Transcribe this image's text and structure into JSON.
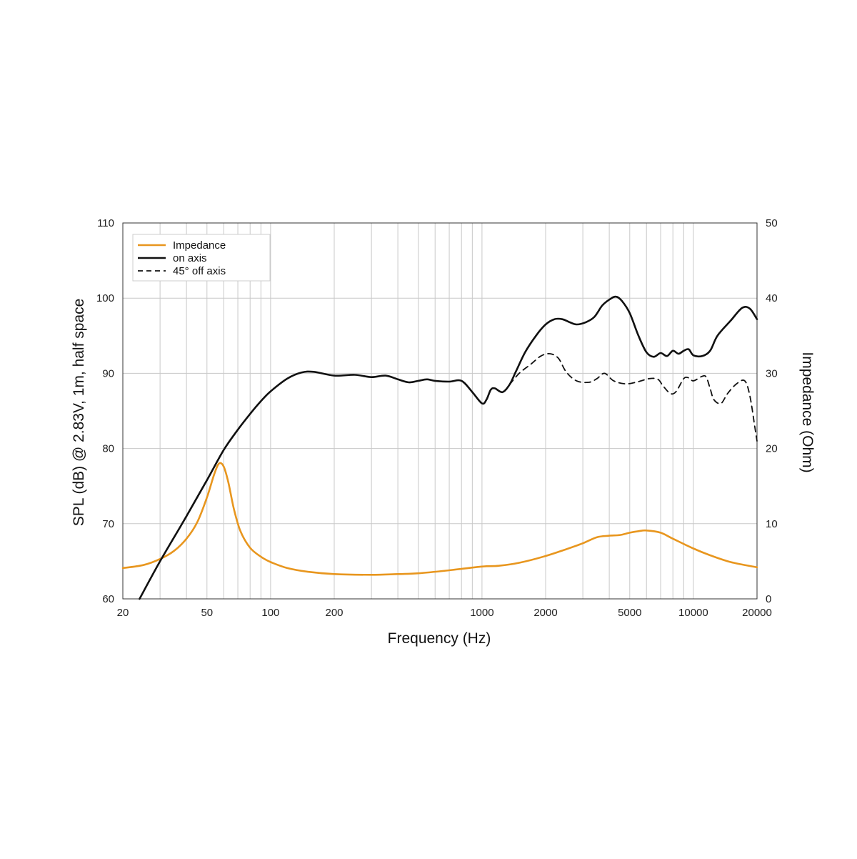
{
  "chart_data": {
    "type": "line",
    "xscale": "log",
    "xlim": [
      20,
      20000
    ],
    "ylim": [
      60,
      110
    ],
    "y2lim": [
      0,
      50
    ],
    "grid": true,
    "legend_position": "top-left",
    "xlabel": "Frequency (Hz)",
    "ylabel": "SPL (dB) @ 2.83V, 1m, half space",
    "y2label": "Impedance (Ohm)",
    "x_ticks": [
      20,
      50,
      100,
      200,
      1000,
      2000,
      5000,
      10000,
      20000
    ],
    "x_tick_labels": [
      "20",
      "50",
      "100",
      "200",
      "1000",
      "2000",
      "5000",
      "10000",
      "20000"
    ],
    "y_ticks": [
      60,
      70,
      80,
      90,
      100,
      110
    ],
    "y_tick_labels": [
      "60",
      "70",
      "80",
      "90",
      "100",
      "110"
    ],
    "y2_ticks": [
      0,
      10,
      20,
      30,
      40,
      50
    ],
    "y2_tick_labels": [
      "0",
      "10",
      "20",
      "30",
      "40",
      "50"
    ],
    "series": [
      {
        "name": "Impedance",
        "axis": "right",
        "color": "#e8961e",
        "style": "solid",
        "points": [
          [
            20,
            4.1
          ],
          [
            25,
            4.5
          ],
          [
            30,
            5.3
          ],
          [
            35,
            6.4
          ],
          [
            40,
            8.0
          ],
          [
            45,
            10.2
          ],
          [
            50,
            13.5
          ],
          [
            54,
            16.5
          ],
          [
            57,
            18.0
          ],
          [
            60,
            17.6
          ],
          [
            63,
            15.6
          ],
          [
            67,
            12.0
          ],
          [
            72,
            9.0
          ],
          [
            80,
            6.8
          ],
          [
            90,
            5.6
          ],
          [
            100,
            4.9
          ],
          [
            120,
            4.1
          ],
          [
            150,
            3.6
          ],
          [
            200,
            3.3
          ],
          [
            300,
            3.2
          ],
          [
            400,
            3.3
          ],
          [
            500,
            3.4
          ],
          [
            700,
            3.8
          ],
          [
            1000,
            4.3
          ],
          [
            1200,
            4.4
          ],
          [
            1500,
            4.8
          ],
          [
            2000,
            5.7
          ],
          [
            2500,
            6.6
          ],
          [
            3000,
            7.4
          ],
          [
            3500,
            8.2
          ],
          [
            4000,
            8.4
          ],
          [
            4500,
            8.5
          ],
          [
            5000,
            8.8
          ],
          [
            5500,
            9.0
          ],
          [
            6000,
            9.1
          ],
          [
            7000,
            8.8
          ],
          [
            8000,
            8.0
          ],
          [
            10000,
            6.7
          ],
          [
            12000,
            5.8
          ],
          [
            15000,
            4.9
          ],
          [
            20000,
            4.2
          ]
        ]
      },
      {
        "name": "on axis",
        "axis": "left",
        "color": "#111111",
        "style": "solid",
        "points": [
          [
            24,
            60.0
          ],
          [
            30,
            65.0
          ],
          [
            40,
            71.0
          ],
          [
            50,
            75.8
          ],
          [
            60,
            79.8
          ],
          [
            70,
            82.5
          ],
          [
            80,
            84.6
          ],
          [
            90,
            86.3
          ],
          [
            100,
            87.6
          ],
          [
            120,
            89.3
          ],
          [
            140,
            90.1
          ],
          [
            160,
            90.2
          ],
          [
            200,
            89.7
          ],
          [
            250,
            89.8
          ],
          [
            300,
            89.5
          ],
          [
            350,
            89.7
          ],
          [
            400,
            89.2
          ],
          [
            450,
            88.8
          ],
          [
            500,
            89.0
          ],
          [
            550,
            89.2
          ],
          [
            600,
            89.0
          ],
          [
            700,
            88.9
          ],
          [
            800,
            89.0
          ],
          [
            900,
            87.5
          ],
          [
            1000,
            86.0
          ],
          [
            1050,
            86.5
          ],
          [
            1100,
            87.8
          ],
          [
            1150,
            88.0
          ],
          [
            1250,
            87.5
          ],
          [
            1350,
            88.5
          ],
          [
            1450,
            90.3
          ],
          [
            1600,
            92.8
          ],
          [
            1800,
            95.0
          ],
          [
            2000,
            96.5
          ],
          [
            2200,
            97.2
          ],
          [
            2400,
            97.2
          ],
          [
            2600,
            96.8
          ],
          [
            2800,
            96.5
          ],
          [
            3100,
            96.8
          ],
          [
            3400,
            97.5
          ],
          [
            3700,
            99.0
          ],
          [
            4000,
            99.8
          ],
          [
            4300,
            100.2
          ],
          [
            4600,
            99.6
          ],
          [
            5000,
            98.0
          ],
          [
            5500,
            95.0
          ],
          [
            6000,
            92.8
          ],
          [
            6500,
            92.2
          ],
          [
            7000,
            92.7
          ],
          [
            7500,
            92.3
          ],
          [
            8000,
            93.0
          ],
          [
            8500,
            92.6
          ],
          [
            9000,
            93.0
          ],
          [
            9500,
            93.2
          ],
          [
            10000,
            92.4
          ],
          [
            11000,
            92.3
          ],
          [
            12000,
            93.0
          ],
          [
            13000,
            95.0
          ],
          [
            15000,
            97.0
          ],
          [
            17000,
            98.7
          ],
          [
            18500,
            98.6
          ],
          [
            20000,
            97.2
          ]
        ]
      },
      {
        "name": "45° off axis",
        "axis": "left",
        "color": "#111111",
        "style": "dashed",
        "points": [
          [
            1350,
            88.5
          ],
          [
            1500,
            90.0
          ],
          [
            1700,
            91.2
          ],
          [
            1900,
            92.3
          ],
          [
            2100,
            92.6
          ],
          [
            2300,
            92.0
          ],
          [
            2500,
            90.2
          ],
          [
            2800,
            89.0
          ],
          [
            3200,
            88.8
          ],
          [
            3500,
            89.3
          ],
          [
            3800,
            90.0
          ],
          [
            4200,
            89.0
          ],
          [
            4800,
            88.6
          ],
          [
            5500,
            88.9
          ],
          [
            6200,
            89.3
          ],
          [
            6800,
            89.2
          ],
          [
            7200,
            88.3
          ],
          [
            7800,
            87.3
          ],
          [
            8300,
            87.6
          ],
          [
            9000,
            89.3
          ],
          [
            9500,
            89.4
          ],
          [
            10000,
            89.0
          ],
          [
            11000,
            89.6
          ],
          [
            11500,
            89.5
          ],
          [
            12000,
            88.0
          ],
          [
            12500,
            86.5
          ],
          [
            13500,
            86.0
          ],
          [
            14500,
            87.3
          ],
          [
            16000,
            88.6
          ],
          [
            17500,
            89.0
          ],
          [
            18500,
            87.0
          ],
          [
            19500,
            83.0
          ],
          [
            20000,
            81.0
          ]
        ]
      }
    ]
  }
}
